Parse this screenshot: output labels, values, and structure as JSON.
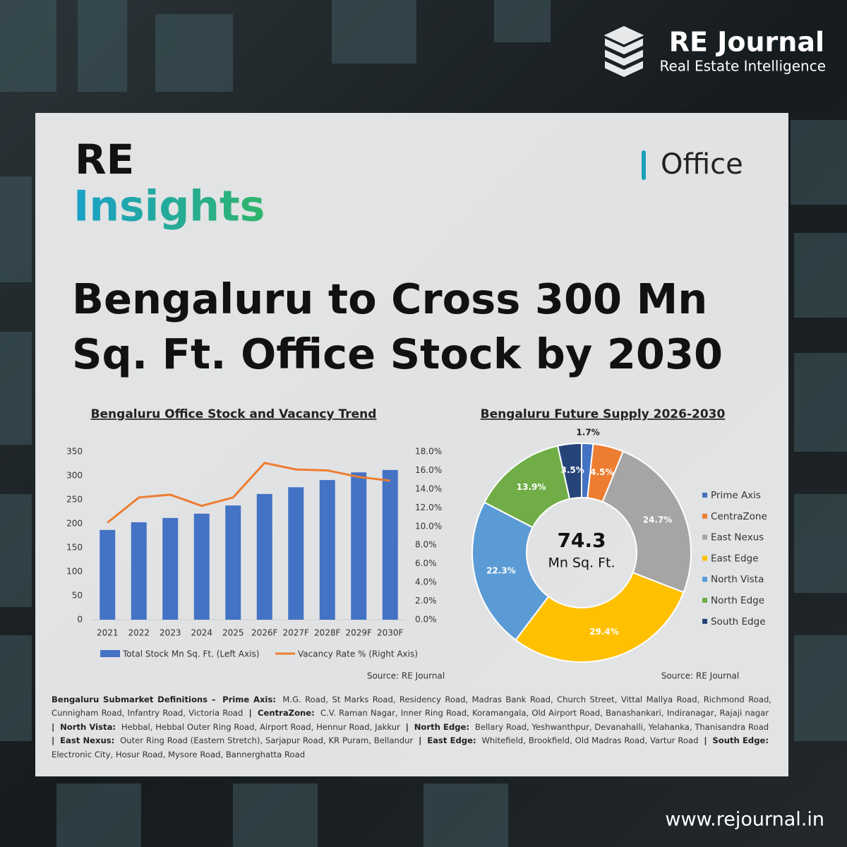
{
  "brand": {
    "name": "RE Journal",
    "tagline": "Real Estate Intelligence"
  },
  "badge": {
    "line1": "RE",
    "line2": "Insights",
    "category": "Office"
  },
  "headline": [
    "Bengaluru to Cross 300 Mn",
    "Sq. Ft. Office Stock by 2030"
  ],
  "chart_data": [
    {
      "type": "bar",
      "title": "Bengaluru Office Stock and Vacancy Trend",
      "categories": [
        "2021",
        "2022",
        "2023",
        "2024",
        "2025",
        "2026F",
        "2027F",
        "2028F",
        "2029F",
        "2030F"
      ],
      "series": [
        {
          "name": "Total Stock Mn Sq. Ft. (Left Axis)",
          "type": "bar",
          "color": "#4472c4",
          "values": [
            187,
            203,
            212,
            221,
            238,
            262,
            276,
            291,
            307,
            312
          ]
        },
        {
          "name": "Vacancy Rate % (Right Axis)",
          "type": "line",
          "axis": "y2",
          "color": "#ed7d31",
          "values": [
            10.4,
            13.1,
            13.4,
            12.2,
            13.1,
            16.8,
            16.1,
            16.0,
            15.3,
            14.9
          ]
        }
      ],
      "ylim": [
        0,
        350
      ],
      "yticks": [
        0,
        50,
        100,
        150,
        200,
        250,
        300,
        350
      ],
      "y2lim": [
        0,
        18
      ],
      "y2ticks": [
        {
          "value": 0,
          "label": "0.0%"
        },
        {
          "value": 2,
          "label": "2.0%"
        },
        {
          "value": 4,
          "label": "4.0%"
        },
        {
          "value": 6,
          "label": "6.0%"
        },
        {
          "value": 8,
          "label": "8.0%"
        },
        {
          "value": 10,
          "label": "10.0%"
        },
        {
          "value": 12,
          "label": "12.0%"
        },
        {
          "value": 14,
          "label": "14.0%"
        },
        {
          "value": 16,
          "label": "16.0%"
        },
        {
          "value": 18,
          "label": "18.0%"
        }
      ],
      "legend": "bottom",
      "source": "Source: RE Journal"
    },
    {
      "type": "pie",
      "donut": true,
      "title": "Bengaluru Future Supply 2026-2030",
      "categories": [
        "Prime Axis",
        "CentraZone",
        "East Nexus",
        "East Edge",
        "North Vista",
        "North Edge",
        "South Edge"
      ],
      "values": [
        1.7,
        4.5,
        24.7,
        29.4,
        22.3,
        13.9,
        3.5
      ],
      "value_labels": [
        "1.7%",
        "4.5%",
        "24.7%",
        "29.4%",
        "22.3%",
        "13.9%",
        "3.5%"
      ],
      "colors": [
        "#4472c4",
        "#ed7d31",
        "#a5a5a5",
        "#ffc000",
        "#5b9bd5",
        "#70ad47",
        "#264478"
      ],
      "center_value": 74.3,
      "center_label": "Mn Sq. Ft.",
      "legend": "right",
      "source": "Source: RE Journal"
    }
  ],
  "footnote": {
    "intro": "Bengaluru Submarket Definitions –",
    "separator": "|",
    "submarkets": [
      {
        "name": "Prime Axis:",
        "areas": "M.G. Road, St Marks Road, Residency Road, Madras Bank Road, Church Street, Vittal Mallya Road, Richmond Road, Cunnigham Road, Infantry Road, Victoria Road"
      },
      {
        "name": "CentraZone:",
        "areas": "C.V. Raman Nagar, Inner Ring Road, Koramangala, Old Airport Road, Banashankari, Indiranagar, Rajaji nagar"
      },
      {
        "name": "North Vista:",
        "areas": "Hebbal, Hebbal Outer Ring Road, Airport Road, Hennur Road, Jakkur"
      },
      {
        "name": "North Edge:",
        "areas": "Bellary Road, Yeshwanthpur, Devanahalli, Yelahanka, Thanisandra Road"
      },
      {
        "name": "East Nexus:",
        "areas": "Outer Ring Road (Eastern Stretch), Sarjapur Road, KR Puram, Bellandur"
      },
      {
        "name": "East Edge:",
        "areas": "Whitefield, Brookfield, Old Madras Road, Vartur Road"
      },
      {
        "name": "South Edge:",
        "areas": "Electronic City, Hosur Road, Mysore Road, Bannerghatta Road"
      }
    ]
  },
  "website": "www.rejournal.in"
}
